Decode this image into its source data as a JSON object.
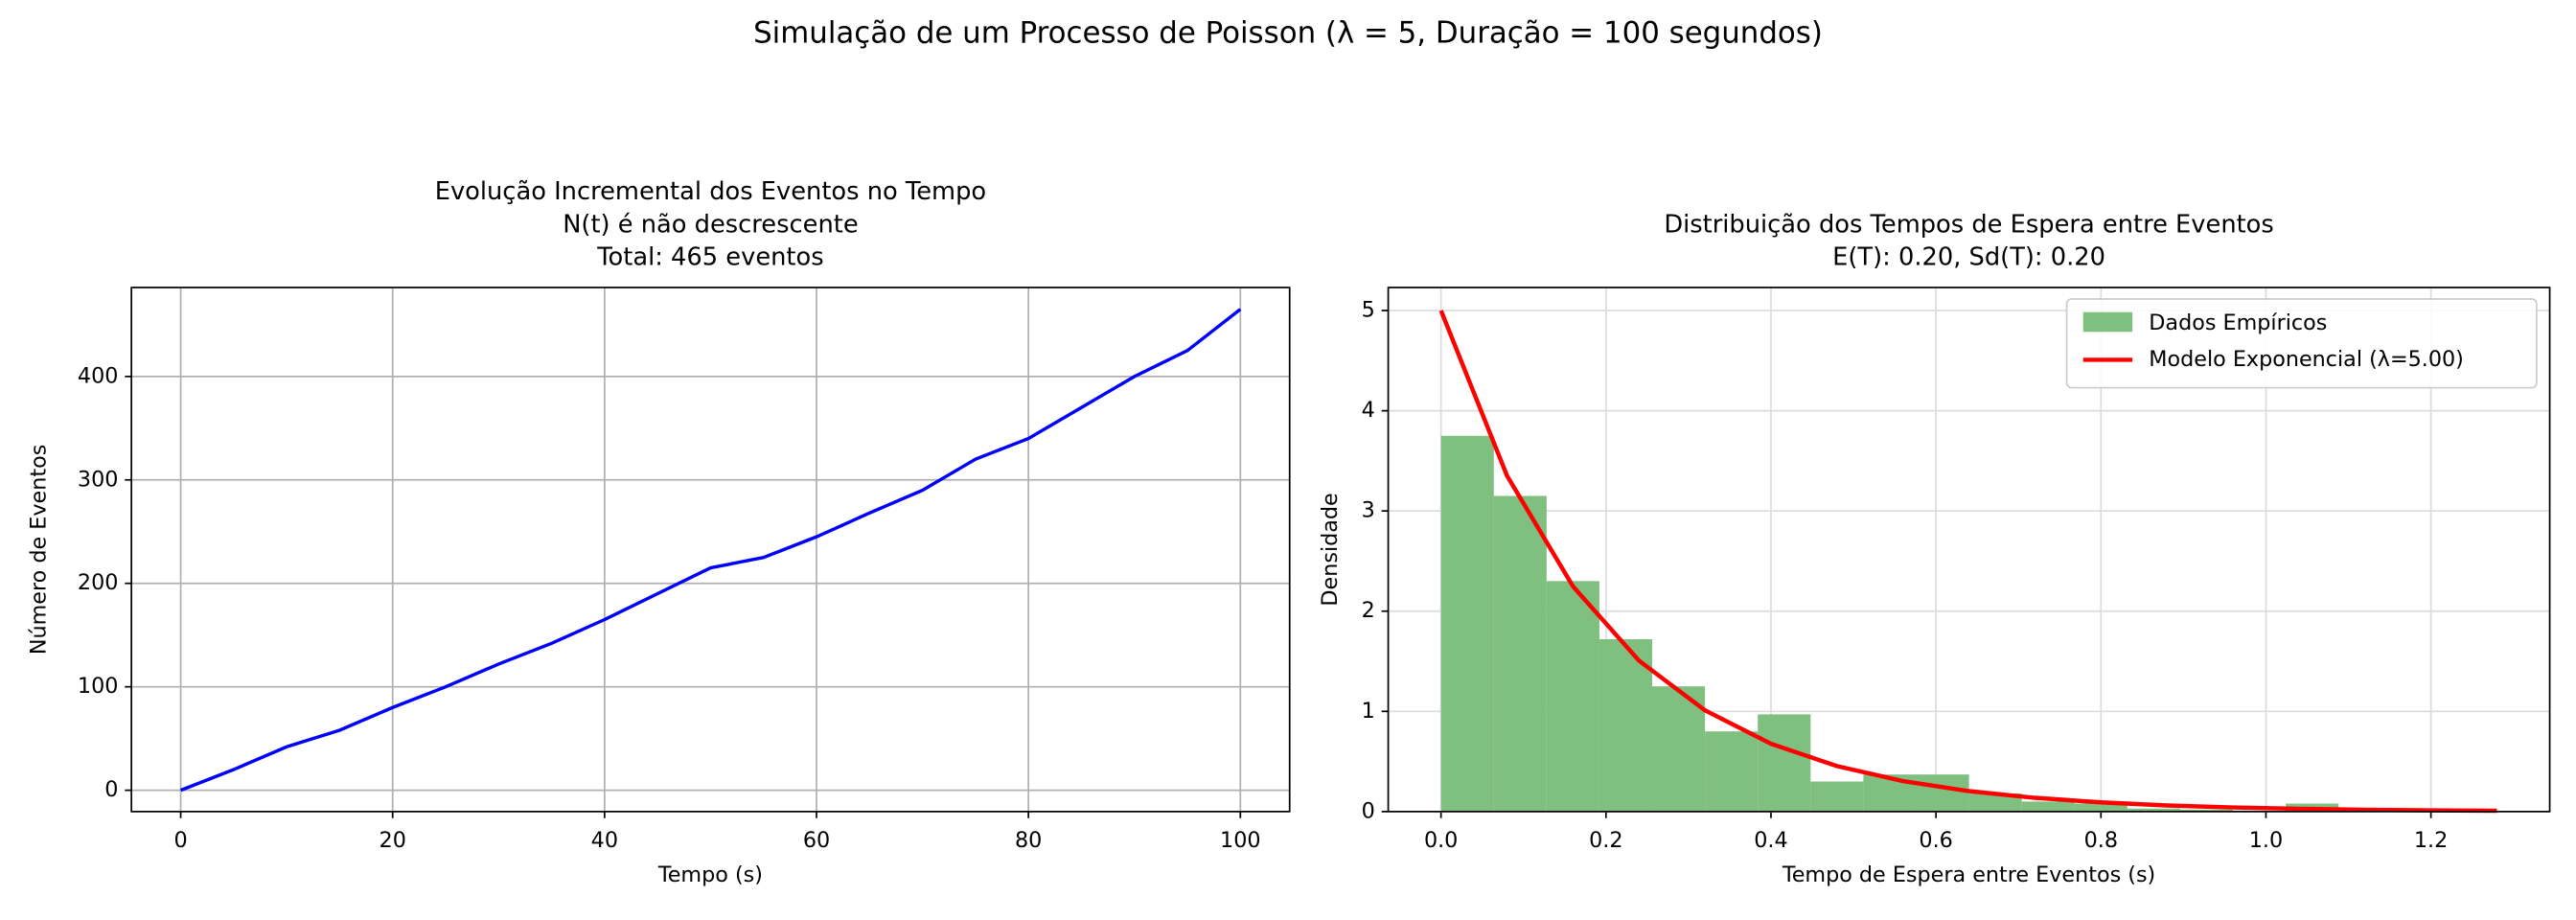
{
  "title": "Simulação de um Processo de Poisson (λ = 5, Duração = 100 segundos)",
  "chart_data": [
    {
      "type": "line",
      "title": [
        "Evolução Incremental dos Eventos no Tempo",
        "N(t) é não descrescente",
        "Total: 465 eventos"
      ],
      "xlabel": "Tempo (s)",
      "ylabel": "Número de Eventos",
      "x": [
        0,
        5,
        10,
        15,
        20,
        25,
        30,
        35,
        40,
        45,
        50,
        55,
        60,
        65,
        70,
        75,
        80,
        85,
        90,
        95,
        100
      ],
      "series": [
        {
          "color": "#0000ff",
          "values": [
            0,
            20,
            42,
            58,
            80,
            100,
            122,
            142,
            165,
            190,
            215,
            225,
            245,
            268,
            290,
            320,
            340,
            370,
            400,
            425,
            465
          ]
        }
      ],
      "xlim": [
        -4.65,
        104.65
      ],
      "ylim": [
        -20.6,
        486
      ],
      "xticks": [
        0,
        20,
        40,
        60,
        80,
        100
      ],
      "yticks": [
        0,
        100,
        200,
        300,
        400
      ],
      "grid": true
    },
    {
      "type": "histogram",
      "title": [
        "Distribuição dos Tempos de Espera entre Eventos",
        "E(T): 0.20, Sd(T): 0.20"
      ],
      "xlabel": "Tempo de Espera entre Eventos (s)",
      "ylabel": "Densidade",
      "hist": {
        "name": "Dados Empíricos",
        "color": "#7fbf7f",
        "bins": [
          0,
          0.064,
          0.128,
          0.192,
          0.256,
          0.32,
          0.384,
          0.448,
          0.512,
          0.576,
          0.64,
          0.704,
          0.768,
          0.832,
          0.896,
          0.96,
          1.024,
          1.088,
          1.152,
          1.216,
          1.28
        ],
        "values": [
          3.75,
          3.15,
          2.3,
          1.72,
          1.25,
          0.8,
          0.97,
          0.3,
          0.37,
          0.37,
          0.18,
          0.1,
          0.08,
          0.03,
          0.02,
          0,
          0.08,
          0.02,
          0.01,
          0.01
        ]
      },
      "series": [
        {
          "name": "Modelo Exponencial (λ=5.00)",
          "color": "#ff0000",
          "x": [
            0,
            0.08,
            0.16,
            0.24,
            0.32,
            0.4,
            0.48,
            0.56,
            0.64,
            0.72,
            0.8,
            0.88,
            0.96,
            1.04,
            1.12,
            1.2,
            1.28
          ],
          "values": [
            5,
            3.352,
            2.247,
            1.506,
            1.01,
            0.677,
            0.454,
            0.304,
            0.204,
            0.137,
            0.092,
            0.061,
            0.041,
            0.028,
            0.018,
            0.012,
            0.008
          ]
        }
      ],
      "xlim": [
        -0.064,
        1.344
      ],
      "ylim": [
        0,
        5.23
      ],
      "xticks": [
        {
          "value": 0,
          "label": "0.0"
        },
        0.2,
        0.4,
        0.6,
        0.8,
        {
          "value": 1,
          "label": "1.0"
        },
        1.2
      ],
      "yticks": [
        0,
        1,
        2,
        3,
        4,
        5
      ],
      "grid": true,
      "legend": "upper right"
    }
  ]
}
